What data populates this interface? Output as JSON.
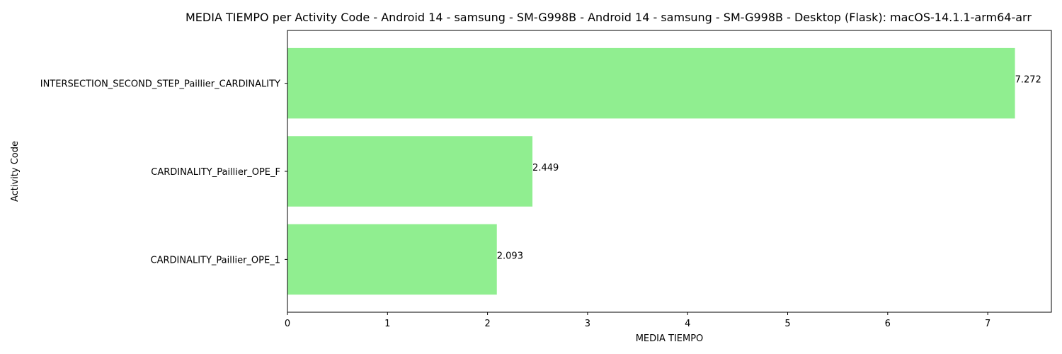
{
  "chart_data": {
    "type": "bar",
    "orientation": "horizontal",
    "title": "MEDIA TIEMPO per Activity Code - Android 14 - samsung - SM-G998B - Android 14 - samsung - SM-G998B - Desktop (Flask): macOS-14.1.1-arm64-arr",
    "xlabel": "MEDIA TIEMPO",
    "ylabel": "Activity Code",
    "categories": [
      "INTERSECTION_SECOND_STEP_Paillier_CARDINALITY",
      "CARDINALITY_Paillier_OPE_F",
      "CARDINALITY_Paillier_OPE_1"
    ],
    "values": [
      7.272,
      2.449,
      2.093
    ],
    "value_labels": [
      "7.272",
      "2.449",
      "2.093"
    ],
    "xlim": [
      0,
      7.636
    ],
    "xticks": [
      0,
      1,
      2,
      3,
      4,
      5,
      6,
      7
    ],
    "xtick_labels": [
      "0",
      "1",
      "2",
      "3",
      "4",
      "5",
      "6",
      "7"
    ],
    "bar_color": "#90ee90",
    "grid": false,
    "legend": "none"
  }
}
